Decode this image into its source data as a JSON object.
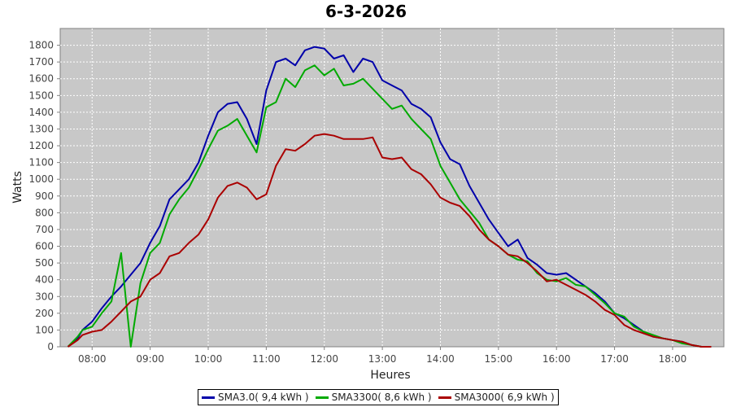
{
  "chart_data": {
    "type": "line",
    "title": "6-3-2026",
    "xlabel": "Heures",
    "ylabel": "Watts",
    "ylim": [
      0,
      1900
    ],
    "xlim": [
      "07:27",
      "18:53"
    ],
    "x_ticks": [
      "08:00",
      "09:00",
      "10:00",
      "11:00",
      "12:00",
      "13:00",
      "14:00",
      "15:00",
      "16:00",
      "17:00",
      "18:00"
    ],
    "y_ticks": [
      0,
      100,
      200,
      300,
      400,
      500,
      600,
      700,
      800,
      900,
      1000,
      1100,
      1200,
      1300,
      1400,
      1500,
      1600,
      1700,
      1800
    ],
    "grid": true,
    "legend_position": "bottom",
    "x": [
      "07:35",
      "07:45",
      "07:50",
      "08:00",
      "08:10",
      "08:20",
      "08:30",
      "08:40",
      "08:50",
      "09:00",
      "09:10",
      "09:20",
      "09:30",
      "09:40",
      "09:50",
      "10:00",
      "10:10",
      "10:20",
      "10:30",
      "10:40",
      "10:50",
      "11:00",
      "11:10",
      "11:20",
      "11:30",
      "11:40",
      "11:50",
      "12:00",
      "12:10",
      "12:20",
      "12:30",
      "12:40",
      "12:50",
      "13:00",
      "13:10",
      "13:20",
      "13:30",
      "13:40",
      "13:50",
      "14:00",
      "14:10",
      "14:20",
      "14:30",
      "14:40",
      "14:50",
      "15:00",
      "15:10",
      "15:20",
      "15:30",
      "15:40",
      "15:50",
      "16:00",
      "16:10",
      "16:20",
      "16:30",
      "16:40",
      "16:50",
      "17:00",
      "17:10",
      "17:20",
      "17:30",
      "17:40",
      "17:50",
      "18:00",
      "18:10",
      "18:20",
      "18:30",
      "18:40"
    ],
    "series": [
      {
        "name": "SMA3.0( 9,4 kWh )",
        "legend_label": "SMA3.0( 9,4 kWh )",
        "color": "#0000aa",
        "values": [
          0,
          50,
          100,
          150,
          230,
          300,
          360,
          430,
          500,
          620,
          720,
          880,
          940,
          1000,
          1100,
          1260,
          1400,
          1450,
          1460,
          1360,
          1210,
          1530,
          1700,
          1720,
          1680,
          1770,
          1790,
          1780,
          1720,
          1740,
          1640,
          1720,
          1700,
          1590,
          1560,
          1530,
          1450,
          1420,
          1370,
          1220,
          1120,
          1090,
          960,
          860,
          760,
          680,
          600,
          640,
          530,
          490,
          440,
          430,
          440,
          400,
          360,
          320,
          270,
          200,
          170,
          130,
          90,
          60,
          50,
          40,
          30,
          10,
          0,
          0
        ]
      },
      {
        "name": "SMA3300( 8,6 kWh )",
        "legend_label": "SMA3300( 8,6 kWh )",
        "color": "#00aa00",
        "values": [
          0,
          60,
          100,
          120,
          200,
          270,
          560,
          0,
          380,
          560,
          620,
          790,
          880,
          950,
          1060,
          1180,
          1290,
          1320,
          1360,
          1260,
          1160,
          1430,
          1460,
          1600,
          1550,
          1650,
          1680,
          1620,
          1660,
          1560,
          1570,
          1600,
          1540,
          1480,
          1420,
          1440,
          1360,
          1300,
          1240,
          1080,
          980,
          880,
          810,
          740,
          640,
          600,
          550,
          520,
          510,
          440,
          400,
          390,
          410,
          370,
          360,
          310,
          260,
          200,
          180,
          120,
          90,
          70,
          50,
          40,
          20,
          10,
          0,
          0
        ]
      },
      {
        "name": "SMA3000( 6,9 kWh )",
        "legend_label": "SMA3000( 6,9 kWh )",
        "color": "#aa0000",
        "values": [
          0,
          40,
          70,
          90,
          100,
          150,
          210,
          270,
          300,
          400,
          440,
          540,
          560,
          620,
          670,
          760,
          890,
          960,
          980,
          950,
          880,
          910,
          1080,
          1180,
          1170,
          1210,
          1260,
          1270,
          1260,
          1240,
          1240,
          1240,
          1250,
          1130,
          1120,
          1130,
          1060,
          1030,
          970,
          890,
          860,
          840,
          780,
          700,
          640,
          600,
          550,
          540,
          500,
          450,
          390,
          400,
          370,
          340,
          310,
          270,
          220,
          190,
          130,
          100,
          80,
          60,
          50,
          40,
          30,
          10,
          0,
          0
        ]
      }
    ]
  }
}
